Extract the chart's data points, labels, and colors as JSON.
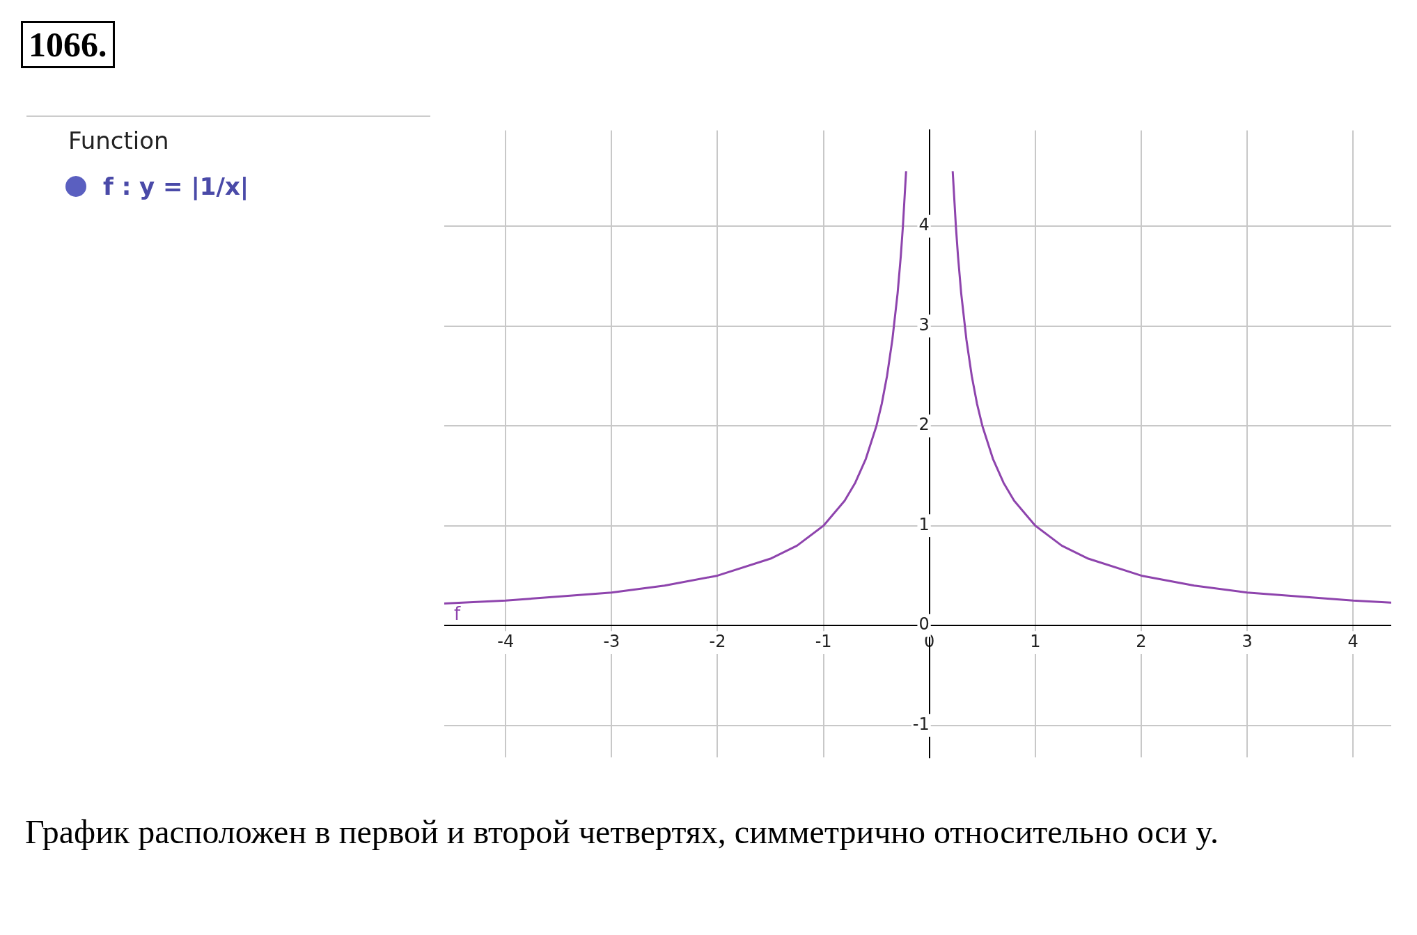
{
  "chart_data": {
    "type": "line",
    "title": "1066.",
    "legend_title": "Function",
    "legend": "left",
    "series": [
      {
        "name": "f : y = |1/x|",
        "color": "#8e44ad",
        "x": [
          -4.58,
          -4,
          -3.5,
          -3,
          -2.5,
          -2,
          -1.5,
          -1.25,
          -1,
          -0.8,
          -0.7,
          -0.6,
          -0.5,
          -0.45,
          -0.4,
          -0.35,
          -0.3,
          -0.27,
          -0.25,
          -0.22,
          0,
          0.22,
          0.25,
          0.27,
          0.3,
          0.35,
          0.4,
          0.45,
          0.5,
          0.6,
          0.7,
          0.8,
          1,
          1.25,
          1.5,
          2,
          2.5,
          3,
          3.5,
          4,
          4.36
        ],
        "values": [
          0.22,
          0.25,
          0.29,
          0.33,
          0.4,
          0.5,
          0.67,
          0.8,
          1,
          1.25,
          1.43,
          1.67,
          2,
          2.22,
          2.5,
          2.86,
          3.33,
          3.7,
          4,
          4.55,
          null,
          4.55,
          4,
          3.7,
          3.33,
          2.86,
          2.5,
          2.22,
          2,
          1.67,
          1.43,
          1.25,
          1,
          0.8,
          0.67,
          0.5,
          0.4,
          0.33,
          0.29,
          0.25,
          0.23
        ]
      }
    ],
    "xlim": [
      -4.58,
      4.36
    ],
    "ylim": [
      -1.32,
      4.96
    ],
    "xticks": [
      -4,
      -3,
      -2,
      -1,
      0,
      1,
      2,
      3,
      4
    ],
    "yticks": [
      -1,
      0,
      1,
      2,
      3,
      4
    ],
    "grid": true,
    "marker": "none",
    "line_style": "solid",
    "annotations": [
      "f",
      "График расположен в первой и второй четвертях, симметрично относительно оси y."
    ]
  }
}
